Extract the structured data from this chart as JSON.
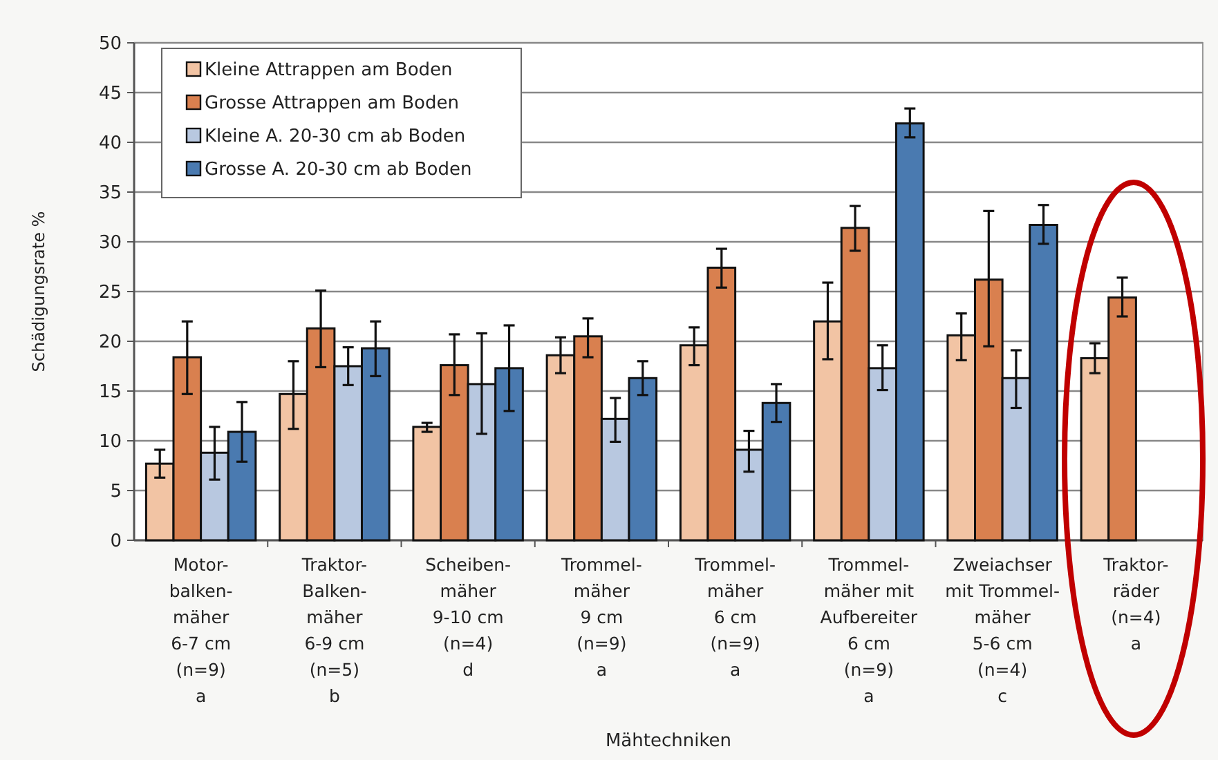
{
  "chart_data": {
    "type": "bar",
    "xlabel": "Mähtechniken",
    "ylabel": "Schädigungsrate %",
    "categories": [
      "Motor-\nbalken-\nmäher\n6-7 cm\n(n=9)\na",
      "Traktor-\nBalken-\nmäher\n6-9 cm\n(n=5)\nb",
      "Scheiben-\nmäher\n9-10 cm\n(n=4)\nd",
      "Trommel-\nmäher\n9 cm\n(n=9)\na",
      "Trommel-\nmäher\n6 cm\n(n=9)\na",
      "Trommel-\nmäher mit\nAufbereiter\n6 cm\n(n=9)\na",
      "Zweiachser\nmit Trommel-\nmäher\n5-6 cm\n(n=4)\nc",
      "Traktor-\nräder\n(n=4)\na"
    ],
    "series": [
      {
        "name": "Kleine Attrappen am Boden",
        "color": "#f2c4a4",
        "values": [
          7.7,
          14.7,
          11.4,
          18.6,
          19.6,
          22.0,
          20.6,
          18.3
        ],
        "errors": [
          [
            6.3,
            9.1
          ],
          [
            11.2,
            18
          ],
          [
            10.9,
            11.8
          ],
          [
            16.8,
            20.4
          ],
          [
            17.6,
            21.4
          ],
          [
            18.2,
            25.9
          ],
          [
            18.1,
            22.8
          ],
          [
            16.8,
            19.8
          ]
        ]
      },
      {
        "name": "Grosse Attrappen am Boden",
        "color": "#d9804f",
        "values": [
          18.4,
          21.3,
          17.6,
          20.5,
          27.4,
          31.4,
          26.2,
          24.4
        ],
        "errors": [
          [
            14.7,
            22
          ],
          [
            17.4,
            25.1
          ],
          [
            14.6,
            20.7
          ],
          [
            18.4,
            22.3
          ],
          [
            25.4,
            29.3
          ],
          [
            29.1,
            33.6
          ],
          [
            19.5,
            33.1
          ],
          [
            22.5,
            26.4
          ]
        ]
      },
      {
        "name": "Kleine A. 20-30 cm ab Boden",
        "color": "#b8c8e0",
        "values": [
          8.8,
          17.5,
          15.7,
          12.2,
          9.1,
          17.3,
          16.3,
          null
        ],
        "errors": [
          [
            6.1,
            11.4
          ],
          [
            15.6,
            19.4
          ],
          [
            10.7,
            20.8
          ],
          [
            9.9,
            14.3
          ],
          [
            6.9,
            11.0
          ],
          [
            15.1,
            19.6
          ],
          [
            13.3,
            19.1
          ],
          null
        ]
      },
      {
        "name": "Grosse A. 20-30 cm ab Boden",
        "color": "#4a7ab0",
        "values": [
          10.9,
          19.3,
          17.3,
          16.3,
          13.8,
          41.9,
          31.7,
          null
        ],
        "errors": [
          [
            7.9,
            13.9
          ],
          [
            16.5,
            22
          ],
          [
            13,
            21.6
          ],
          [
            14.6,
            18
          ],
          [
            11.9,
            15.7
          ],
          [
            40.5,
            43.4
          ],
          [
            29.8,
            33.7
          ],
          null
        ]
      }
    ],
    "ylim": [
      0,
      50
    ],
    "yticks": [
      0,
      5,
      10,
      15,
      20,
      25,
      30,
      35,
      40,
      45,
      50
    ],
    "grid": "y",
    "legend": "top left"
  }
}
